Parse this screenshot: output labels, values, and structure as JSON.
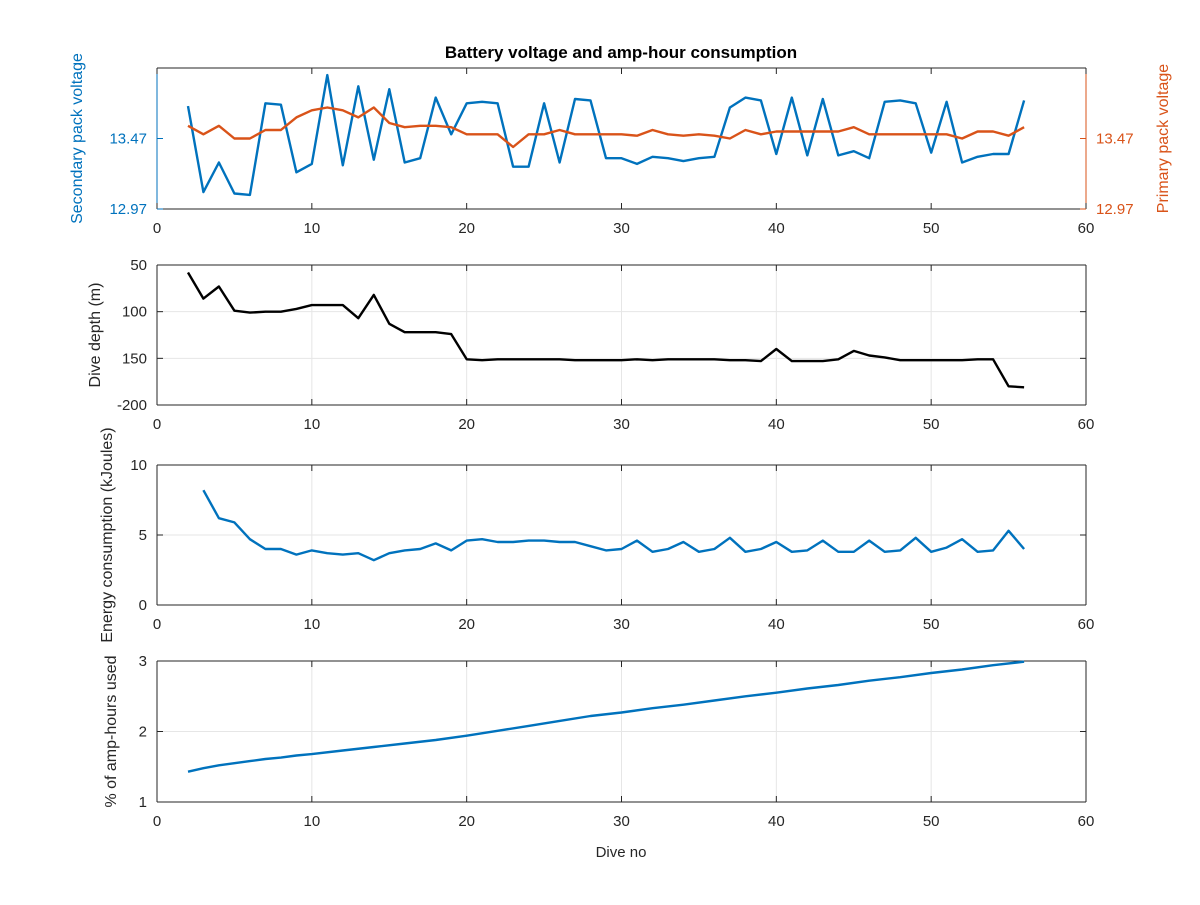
{
  "figure": {
    "title": "Battery voltage and amp-hour consumption",
    "xlabel": "Dive no"
  },
  "colors": {
    "blue": "#0072BD",
    "orange": "#D95319",
    "black": "#000000",
    "grid": "#e6e6e6"
  },
  "chart_data": [
    {
      "type": "line",
      "title": "Battery voltage and amp-hour consumption",
      "xlabel": "",
      "ylabel": "Secondary pack voltage",
      "ylabel_right": "Primary pack voltage",
      "xlim": [
        0,
        60
      ],
      "ylim": [
        12.97,
        13.97
      ],
      "xticks": [
        0,
        10,
        20,
        30,
        40,
        50,
        60
      ],
      "yticks": [
        "12.97",
        "13.47"
      ],
      "yticks_right": [
        "12.97",
        "13.47"
      ],
      "grid": false,
      "series": [
        {
          "axis": "left",
          "color": "#0072BD",
          "x": [
            2,
            3,
            4,
            5,
            6,
            7,
            8,
            9,
            10,
            11,
            12,
            13,
            14,
            15,
            16,
            17,
            18,
            19,
            20,
            21,
            22,
            23,
            24,
            25,
            26,
            27,
            28,
            29,
            30,
            31,
            32,
            33,
            34,
            35,
            36,
            37,
            38,
            39,
            40,
            41,
            42,
            43,
            44,
            45,
            46,
            47,
            48,
            49,
            50,
            51,
            52,
            53,
            54,
            55,
            56
          ],
          "y": [
            13.7,
            13.09,
            13.3,
            13.08,
            13.07,
            13.72,
            13.71,
            13.23,
            13.29,
            13.92,
            13.28,
            13.84,
            13.32,
            13.82,
            13.3,
            13.33,
            13.76,
            13.5,
            13.72,
            13.73,
            13.72,
            13.27,
            13.27,
            13.72,
            13.3,
            13.75,
            13.74,
            13.33,
            13.33,
            13.29,
            13.34,
            13.33,
            13.31,
            13.33,
            13.34,
            13.69,
            13.76,
            13.74,
            13.36,
            13.76,
            13.35,
            13.75,
            13.35,
            13.38,
            13.33,
            13.73,
            13.74,
            13.72,
            13.37,
            13.73,
            13.3,
            13.34,
            13.36,
            13.36,
            13.74
          ]
        },
        {
          "axis": "right",
          "color": "#D95319",
          "x": [
            2,
            3,
            4,
            5,
            6,
            7,
            8,
            9,
            10,
            11,
            12,
            13,
            14,
            15,
            16,
            17,
            18,
            19,
            20,
            21,
            22,
            23,
            24,
            25,
            26,
            27,
            28,
            29,
            30,
            31,
            32,
            33,
            34,
            35,
            36,
            37,
            38,
            39,
            40,
            41,
            42,
            43,
            44,
            45,
            46,
            47,
            48,
            49,
            50,
            51,
            52,
            53,
            54,
            55,
            56
          ],
          "y": [
            13.56,
            13.5,
            13.56,
            13.47,
            13.47,
            13.53,
            13.53,
            13.62,
            13.67,
            13.69,
            13.67,
            13.62,
            13.69,
            13.58,
            13.55,
            13.56,
            13.56,
            13.55,
            13.5,
            13.5,
            13.5,
            13.41,
            13.5,
            13.5,
            13.53,
            13.5,
            13.5,
            13.5,
            13.5,
            13.49,
            13.53,
            13.5,
            13.49,
            13.5,
            13.49,
            13.47,
            13.53,
            13.5,
            13.52,
            13.52,
            13.52,
            13.52,
            13.52,
            13.55,
            13.5,
            13.5,
            13.5,
            13.5,
            13.5,
            13.5,
            13.47,
            13.52,
            13.52,
            13.49,
            13.55
          ]
        }
      ]
    },
    {
      "type": "line",
      "xlabel": "",
      "ylabel": "Dive depth (m)",
      "xlim": [
        0,
        60
      ],
      "ylim": [
        50,
        200
      ],
      "y_reversed": true,
      "xticks": [
        0,
        10,
        20,
        30,
        40,
        50,
        60
      ],
      "yticks": [
        "50",
        "100",
        "150",
        "-200"
      ],
      "grid": true,
      "series": [
        {
          "color": "#000000",
          "x": [
            2,
            3,
            4,
            5,
            6,
            7,
            8,
            9,
            10,
            11,
            12,
            13,
            14,
            15,
            16,
            17,
            18,
            19,
            20,
            21,
            22,
            23,
            24,
            25,
            26,
            27,
            28,
            29,
            30,
            31,
            32,
            33,
            34,
            35,
            36,
            37,
            38,
            39,
            40,
            41,
            42,
            43,
            44,
            45,
            46,
            47,
            48,
            49,
            50,
            51,
            52,
            53,
            54,
            55,
            56
          ],
          "y": [
            58,
            86,
            73,
            99,
            101,
            100,
            100,
            97,
            93,
            93,
            93,
            107,
            82,
            113,
            122,
            122,
            122,
            124,
            151,
            152,
            151,
            151,
            151,
            151,
            151,
            152,
            152,
            152,
            152,
            151,
            152,
            151,
            151,
            151,
            151,
            152,
            152,
            153,
            140,
            153,
            153,
            153,
            151,
            142,
            147,
            149,
            152,
            152,
            152,
            152,
            152,
            151,
            151,
            180,
            181
          ]
        }
      ]
    },
    {
      "type": "line",
      "xlabel": "",
      "ylabel": "Energy consumption (kJoules)",
      "xlim": [
        0,
        60
      ],
      "ylim": [
        0,
        10
      ],
      "xticks": [
        0,
        10,
        20,
        30,
        40,
        50,
        60
      ],
      "yticks": [
        "0",
        "5",
        "10"
      ],
      "grid": true,
      "series": [
        {
          "color": "#0072BD",
          "x": [
            3,
            4,
            5,
            6,
            7,
            8,
            9,
            10,
            11,
            12,
            13,
            14,
            15,
            16,
            17,
            18,
            19,
            20,
            21,
            22,
            23,
            24,
            25,
            26,
            27,
            28,
            29,
            30,
            31,
            32,
            33,
            34,
            35,
            36,
            37,
            38,
            39,
            40,
            41,
            42,
            43,
            44,
            45,
            46,
            47,
            48,
            49,
            50,
            51,
            52,
            53,
            54,
            55,
            56
          ],
          "y": [
            8.2,
            6.2,
            5.9,
            4.7,
            4.0,
            4.0,
            3.6,
            3.9,
            3.7,
            3.6,
            3.7,
            3.2,
            3.7,
            3.9,
            4.0,
            4.4,
            3.9,
            4.6,
            4.7,
            4.5,
            4.5,
            4.6,
            4.6,
            4.5,
            4.5,
            4.2,
            3.9,
            4.0,
            4.6,
            3.8,
            4.0,
            4.5,
            3.8,
            4.0,
            4.8,
            3.8,
            4.0,
            4.5,
            3.8,
            3.9,
            4.6,
            3.8,
            3.8,
            4.6,
            3.8,
            3.9,
            4.8,
            3.8,
            4.1,
            4.7,
            3.8,
            3.9,
            5.3,
            4.0
          ]
        }
      ]
    },
    {
      "type": "line",
      "xlabel": "Dive no",
      "ylabel": "% of amp-hours used",
      "xlim": [
        0,
        60
      ],
      "ylim": [
        1,
        3
      ],
      "xticks": [
        0,
        10,
        20,
        30,
        40,
        50,
        60
      ],
      "yticks": [
        "1",
        "2",
        "3"
      ],
      "grid": true,
      "series": [
        {
          "color": "#0072BD",
          "x": [
            2,
            3,
            4,
            5,
            6,
            7,
            8,
            9,
            10,
            12,
            14,
            16,
            18,
            20,
            22,
            24,
            26,
            28,
            30,
            32,
            34,
            36,
            38,
            40,
            42,
            44,
            46,
            48,
            50,
            52,
            54,
            56
          ],
          "y": [
            1.43,
            1.48,
            1.52,
            1.55,
            1.58,
            1.61,
            1.63,
            1.66,
            1.68,
            1.73,
            1.78,
            1.83,
            1.88,
            1.94,
            2.01,
            2.08,
            2.15,
            2.22,
            2.27,
            2.33,
            2.38,
            2.44,
            2.5,
            2.55,
            2.61,
            2.66,
            2.72,
            2.77,
            2.83,
            2.88,
            2.94,
            2.99
          ]
        }
      ]
    }
  ]
}
